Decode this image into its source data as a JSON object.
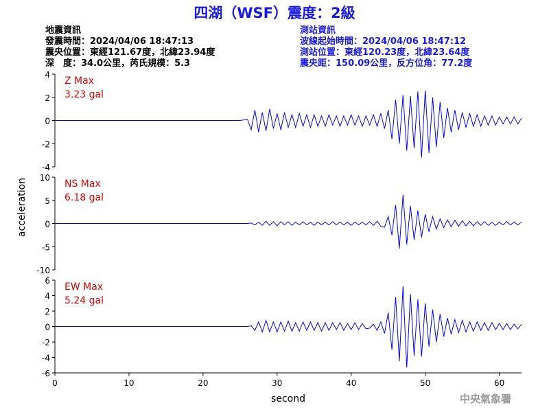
{
  "header": {
    "title": "四湖（WSF）震度：2級",
    "left": [
      "地震資訊",
      "發震時間：2024/04/06 18:47:13",
      "震央位置：東經121.67度，北緯23.94度",
      "深　度：34.0公里，芮氏規模：5.3"
    ],
    "right": [
      "測站資訊",
      "波線起始時間：2024/04/06 18:47:12",
      "測站位置：東經120.23度，北緯23.64度",
      "震央距：150.09公里，反方位角：77.2度"
    ]
  },
  "chart_data": {
    "type": "line",
    "xlabel": "second",
    "ylabel": "acceleration",
    "xlim": [
      0,
      63
    ],
    "xticks": [
      0,
      10,
      20,
      30,
      40,
      50,
      60
    ],
    "x": [
      0,
      5,
      10,
      15,
      20,
      25,
      26,
      26.5,
      27,
      27.5,
      28,
      28.5,
      29,
      29.5,
      30,
      30.5,
      31,
      31.5,
      32,
      32.5,
      33,
      33.5,
      34,
      34.5,
      35,
      35.5,
      36,
      36.5,
      37,
      37.5,
      38,
      38.5,
      39,
      39.5,
      40,
      40.5,
      41,
      41.5,
      42,
      42.5,
      43,
      43.5,
      44,
      44.5,
      45,
      45.5,
      46,
      46.5,
      47,
      47.5,
      48,
      48.5,
      49,
      49.5,
      50,
      50.5,
      51,
      51.5,
      52,
      52.5,
      53,
      53.5,
      54,
      54.5,
      55,
      55.5,
      56,
      56.5,
      57,
      57.5,
      58,
      58.5,
      59,
      59.5,
      60,
      60.5,
      61,
      61.5,
      62,
      62.5,
      63
    ],
    "series": [
      {
        "name": "Z Max",
        "peak_label": "3.23 gal",
        "color": "#0000ff",
        "ylim": [
          -4,
          4
        ],
        "yticks": [
          -4,
          -2,
          0,
          2,
          4
        ],
        "values": [
          0,
          0,
          0,
          0,
          0,
          0,
          0.1,
          -0.8,
          0.9,
          -1.0,
          0.7,
          -0.9,
          1.0,
          -0.7,
          0.6,
          -0.8,
          0.7,
          -0.6,
          0.5,
          -0.6,
          0.6,
          -0.5,
          0.5,
          -0.6,
          0.5,
          -0.5,
          0.4,
          -0.5,
          0.5,
          -0.4,
          0.4,
          -0.5,
          0.4,
          -0.4,
          0.5,
          -0.4,
          0.4,
          -0.5,
          0.4,
          -0.4,
          0.5,
          -0.5,
          0.6,
          -0.7,
          0.9,
          -1.6,
          1.8,
          -2.0,
          2.2,
          -2.6,
          2.1,
          -2.4,
          2.5,
          -3.2,
          2.6,
          -2.8,
          2.0,
          -2.3,
          1.6,
          -1.5,
          1.1,
          -1.0,
          0.9,
          -0.8,
          0.7,
          -0.6,
          0.6,
          -0.5,
          0.5,
          -0.5,
          0.4,
          -0.4,
          0.4,
          -0.4,
          0.3,
          -0.3,
          0.3,
          -0.3,
          0.3,
          -0.3,
          0.2
        ]
      },
      {
        "name": "NS Max",
        "peak_label": "6.18 gal",
        "color": "#0000ff",
        "ylim": [
          -10,
          10
        ],
        "yticks": [
          -10,
          -5,
          0,
          5,
          10
        ],
        "values": [
          0,
          0,
          0,
          0,
          0,
          0,
          0,
          0.1,
          -0.3,
          0.3,
          -0.4,
          0.5,
          -0.4,
          0.4,
          -0.5,
          0.4,
          -0.3,
          0.4,
          -0.4,
          0.3,
          -0.3,
          0.4,
          -0.3,
          0.3,
          -0.4,
          0.3,
          -0.3,
          0.3,
          -0.3,
          0.4,
          -0.3,
          0.3,
          -0.3,
          0.3,
          -0.4,
          0.3,
          -0.3,
          0.3,
          -0.3,
          0.4,
          -0.4,
          0.5,
          -0.6,
          -0.8,
          1.5,
          -2.5,
          4.0,
          -5.4,
          6.2,
          -4.5,
          3.8,
          -3.5,
          2.8,
          -3.0,
          2.0,
          -1.8,
          1.5,
          -1.2,
          1.0,
          -0.9,
          0.8,
          -0.7,
          0.7,
          -0.6,
          0.6,
          -0.5,
          0.5,
          -0.5,
          0.4,
          -0.4,
          0.4,
          -0.4,
          0.3,
          -0.4,
          0.3,
          -0.3,
          0.4,
          -0.3,
          0.3,
          -0.3,
          0.3
        ]
      },
      {
        "name": "EW Max",
        "peak_label": "5.24 gal",
        "color": "#0000ff",
        "ylim": [
          -6,
          6
        ],
        "yticks": [
          -6,
          -4,
          -2,
          0,
          2,
          4,
          6
        ],
        "values": [
          0,
          0,
          0,
          0,
          0,
          0,
          0,
          0.1,
          -0.5,
          0.6,
          -0.7,
          0.8,
          -0.7,
          0.6,
          -0.7,
          0.6,
          -0.6,
          0.7,
          -0.6,
          0.5,
          -0.6,
          0.6,
          -0.5,
          0.6,
          -0.5,
          0.5,
          -0.6,
          0.5,
          -0.5,
          0.5,
          -0.4,
          0.5,
          -0.5,
          0.4,
          -0.4,
          0.5,
          -0.4,
          0.4,
          -0.3,
          -0.2,
          0.3,
          -0.5,
          0.6,
          -0.9,
          1.8,
          -3.0,
          3.8,
          -4.5,
          5.2,
          -5.3,
          4.2,
          -3.8,
          3.5,
          -3.9,
          3.0,
          -2.6,
          2.2,
          -2.0,
          1.6,
          -1.3,
          1.1,
          -1.0,
          0.9,
          -0.8,
          0.8,
          -0.7,
          0.6,
          -0.6,
          0.6,
          -0.5,
          0.5,
          -0.5,
          0.5,
          -0.4,
          0.4,
          -0.4,
          0.4,
          -0.4,
          0.3,
          -0.3,
          0.3
        ]
      }
    ]
  },
  "footer": "中央氣象署"
}
